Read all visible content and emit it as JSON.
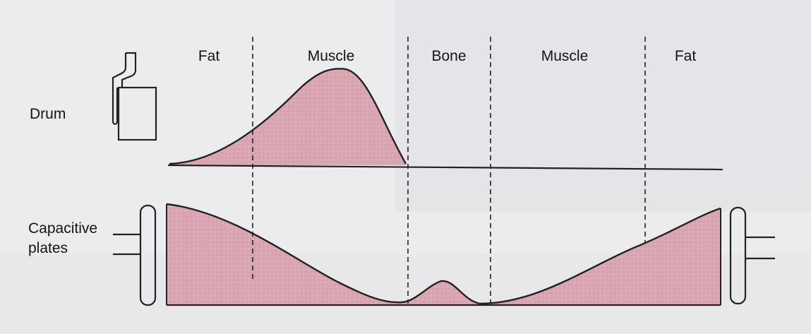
{
  "diagram": {
    "region_labels": [
      "Fat",
      "Muscle",
      "Bone",
      "Muscle",
      "Fat"
    ],
    "left_labels": {
      "drum": "Drum",
      "capacitive_plates": [
        "Capacitive",
        "plates"
      ]
    },
    "colors": {
      "fill": "#dba6b3",
      "line": "#222222",
      "background": "#ecebee"
    }
  }
}
